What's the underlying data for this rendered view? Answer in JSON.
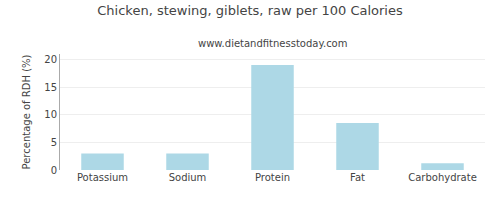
{
  "chart_data": {
    "type": "bar",
    "title": "Chicken, stewing, giblets, raw per 100 Calories",
    "subtitle": "www.dietandfitnesstoday.com",
    "categories": [
      "Potassium",
      "Sodium",
      "Protein",
      "Fat",
      "Carbohydrate"
    ],
    "values": [
      3.0,
      3.0,
      19.0,
      8.5,
      1.2
    ],
    "color": "#add8e6",
    "ylabel": "Percentage of RDH (%)",
    "ylim": [
      0,
      21
    ],
    "yticks": [
      0,
      5,
      10,
      15,
      20
    ],
    "grid": true
  }
}
